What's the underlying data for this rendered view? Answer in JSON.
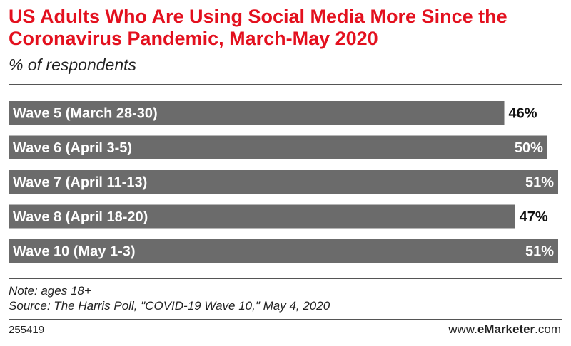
{
  "header": {
    "title": "US Adults Who Are Using Social Media More Since the Coronavirus Pandemic, March-May 2020",
    "subtitle": "% of respondents"
  },
  "footer": {
    "note": "Note: ages 18+",
    "source": "Source: The Harris Poll, \"COVID-19 Wave 10,\" May 4, 2020",
    "chart_id": "255419",
    "brand_prefix": "www.",
    "brand_name": "eMarketer",
    "brand_suffix": ".com"
  },
  "colors": {
    "title": "#e3101e",
    "bar": "#6b6b6b",
    "bar_label": "#ffffff",
    "value_on_bar": "#ffffff",
    "value_outside": "#111111"
  },
  "chart_data": {
    "type": "bar",
    "orientation": "horizontal",
    "title": "US Adults Who Are Using Social Media More Since the Coronavirus Pandemic, March-May 2020",
    "subtitle": "% of respondents",
    "categories": [
      "Wave 5 (March 28-30)",
      "Wave 6 (April 3-5)",
      "Wave 7 (April 11-13)",
      "Wave 8 (April 18-20)",
      "Wave 10 (May 1-3)"
    ],
    "values": [
      46,
      50,
      51,
      47,
      51
    ],
    "value_labels": [
      "46%",
      "50%",
      "51%",
      "47%",
      "51%"
    ],
    "unit": "%",
    "xlim": [
      0,
      51
    ],
    "grid": false,
    "legend": "none"
  }
}
